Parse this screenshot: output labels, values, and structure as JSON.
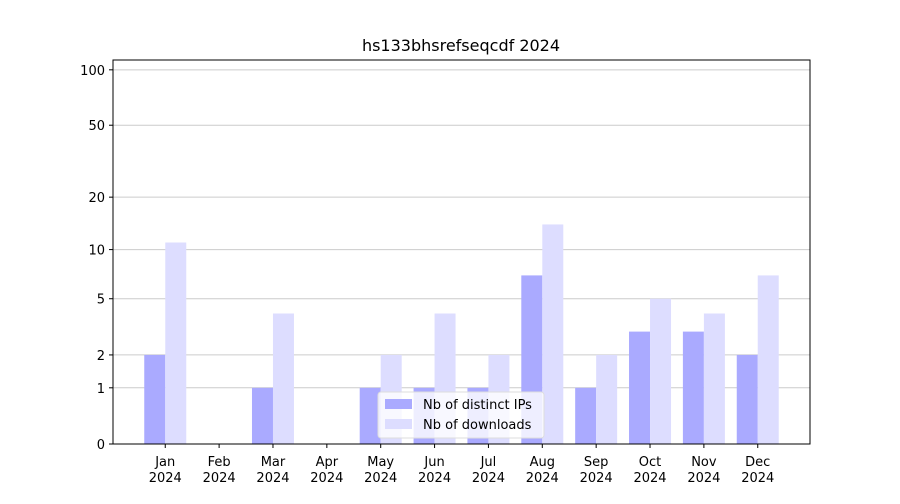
{
  "chart_data": {
    "type": "bar",
    "title": "hs133bhsrefseqcdf 2024",
    "categories": [
      "Jan 2024",
      "Feb 2024",
      "Mar 2024",
      "Apr 2024",
      "May 2024",
      "Jun 2024",
      "Jul 2024",
      "Aug 2024",
      "Sep 2024",
      "Oct 2024",
      "Nov 2024",
      "Dec 2024"
    ],
    "series": [
      {
        "name": "Nb of distinct IPs",
        "color": "#aaaaff",
        "values": [
          2,
          0,
          1,
          0,
          1,
          1,
          1,
          7,
          1,
          3,
          3,
          2
        ]
      },
      {
        "name": "Nb of downloads",
        "color": "#ddddff",
        "values": [
          11,
          0,
          4,
          0,
          2,
          4,
          2,
          14,
          2,
          5,
          4,
          7
        ]
      }
    ],
    "yscale": "log1p",
    "ylim": [
      0,
      113
    ],
    "yticks": [
      0,
      1,
      2,
      5,
      10,
      20,
      50,
      100
    ],
    "grid": true,
    "legend": "lower center"
  }
}
